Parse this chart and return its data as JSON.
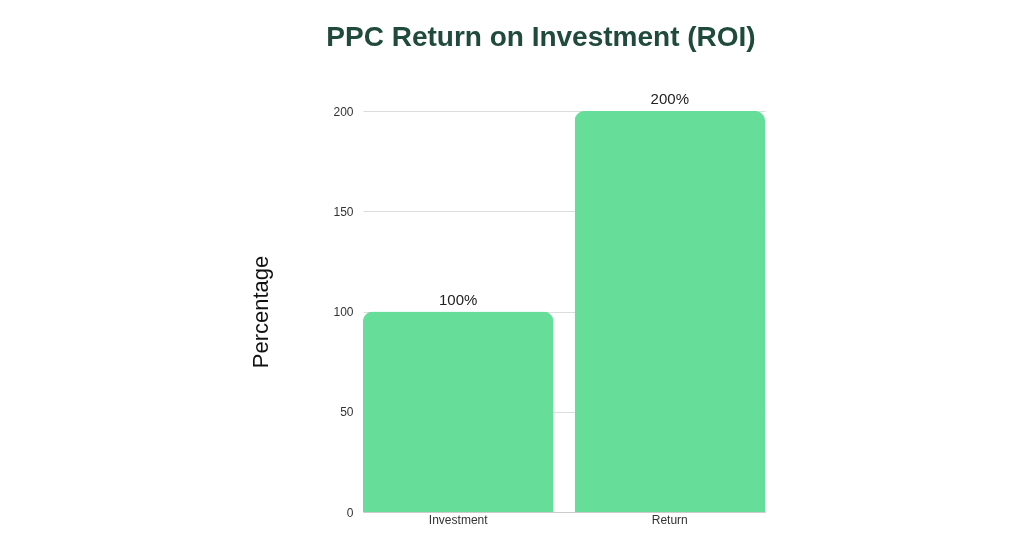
{
  "chart_data": {
    "type": "bar",
    "title": "PPC Return on Investment (ROI)",
    "ylabel": "Percentage",
    "categories": [
      "Investment",
      "Return"
    ],
    "values": [
      100,
      200
    ],
    "value_labels": [
      "100%",
      "200%"
    ],
    "color": "#66de99",
    "ylim": [
      0,
      200
    ],
    "yticks": [
      0,
      50,
      100,
      150,
      200
    ],
    "grid": "y"
  }
}
